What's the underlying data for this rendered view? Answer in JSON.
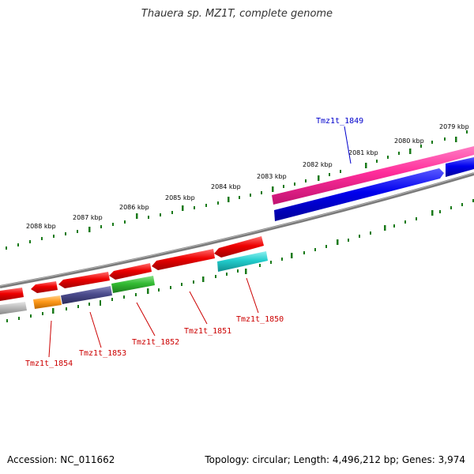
{
  "title": "Thauera sp. MZ1T, complete genome",
  "footer": {
    "accession": "Accession: NC_011662",
    "summary": "Topology: circular; Length: 4,496,212 bp; Genes: 3,974"
  },
  "kbp_labels": [
    "2088 kbp",
    "2087 kbp",
    "2086 kbp",
    "2085 kbp",
    "2084 kbp",
    "2083 kbp",
    "2082 kbp",
    "2081 kbp",
    "2080 kbp",
    "2079 kbp"
  ],
  "gene_labels": [
    "Tmz1t_1849",
    "Tmz1t_1850",
    "Tmz1t_1851",
    "Tmz1t_1852",
    "Tmz1t_1853",
    "Tmz1t_1854"
  ],
  "colors": {
    "backbone": "#7a7a7a",
    "tick": "#1a7a1a",
    "forward_gene": "#ff2d9a",
    "forward_gene_2": "#0000ee",
    "reverse_gene": "#ee0000",
    "cyan_gene": "#22cccc",
    "green_gene": "#33bb33",
    "purple_gene": "#4b4b8c",
    "orange_gene": "#ff9a1a",
    "grey_gene": "#bbbbbb",
    "label_blue": "#0000cc",
    "label_red": "#cc0000"
  }
}
